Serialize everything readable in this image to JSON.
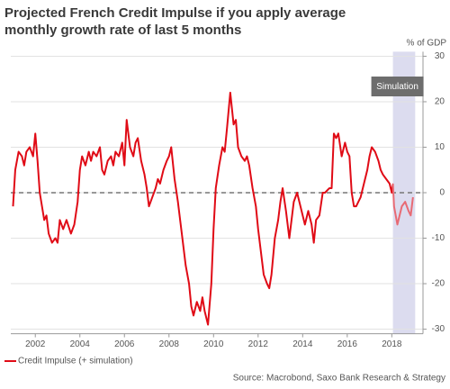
{
  "chart_data": {
    "type": "line",
    "title_lines": [
      "Projected French Credit Impulse if you apply average",
      "monthly growth rate of last 5 months"
    ],
    "y_unit_label": "% of GDP",
    "source": "Source: Macrobond, Saxo Bank Research & Strategy",
    "xlim": [
      2000.9,
      2019.4
    ],
    "xticks": [
      2002,
      2004,
      2006,
      2008,
      2010,
      2012,
      2014,
      2016,
      2018
    ],
    "ylim": [
      -31,
      31
    ],
    "yticks": [
      -30,
      -20,
      -10,
      0,
      10,
      20,
      30
    ],
    "grid": true,
    "zero_line": true,
    "simulation": {
      "label": "Simulation",
      "range": [
        2018.05,
        2019.05
      ],
      "color": "#e86a74",
      "band_color": "#dcdcef"
    },
    "series": [
      {
        "name": "Credit Impulse (+ simulation)",
        "color": "#e00b16",
        "x": [
          2001.0,
          2001.1,
          2001.25,
          2001.4,
          2001.5,
          2001.6,
          2001.75,
          2001.9,
          2002.0,
          2002.1,
          2002.2,
          2002.4,
          2002.5,
          2002.6,
          2002.75,
          2002.9,
          2003.0,
          2003.1,
          2003.25,
          2003.4,
          2003.6,
          2003.75,
          2003.9,
          2004.0,
          2004.1,
          2004.25,
          2004.4,
          2004.5,
          2004.6,
          2004.75,
          2004.9,
          2005.0,
          2005.1,
          2005.25,
          2005.4,
          2005.5,
          2005.6,
          2005.75,
          2005.9,
          2006.0,
          2006.1,
          2006.25,
          2006.4,
          2006.5,
          2006.6,
          2006.75,
          2006.9,
          2007.0,
          2007.1,
          2007.25,
          2007.4,
          2007.5,
          2007.6,
          2007.75,
          2007.9,
          2008.0,
          2008.1,
          2008.25,
          2008.4,
          2008.5,
          2008.6,
          2008.75,
          2008.9,
          2009.0,
          2009.1,
          2009.25,
          2009.4,
          2009.5,
          2009.6,
          2009.75,
          2009.9,
          2010.0,
          2010.1,
          2010.25,
          2010.4,
          2010.5,
          2010.6,
          2010.75,
          2010.9,
          2011.0,
          2011.1,
          2011.25,
          2011.4,
          2011.5,
          2011.6,
          2011.75,
          2011.9,
          2012.0,
          2012.1,
          2012.25,
          2012.4,
          2012.5,
          2012.6,
          2012.75,
          2012.9,
          2013.0,
          2013.1,
          2013.25,
          2013.4,
          2013.5,
          2013.6,
          2013.75,
          2013.9,
          2014.0,
          2014.1,
          2014.25,
          2014.4,
          2014.5,
          2014.6,
          2014.75,
          2014.9,
          2015.0,
          2015.2,
          2015.3,
          2015.4,
          2015.5,
          2015.6,
          2015.75,
          2015.9,
          2016.0,
          2016.1,
          2016.2,
          2016.3,
          2016.4,
          2016.5,
          2016.6,
          2016.75,
          2016.9,
          2017.0,
          2017.1,
          2017.25,
          2017.4,
          2017.5,
          2017.6,
          2017.75,
          2017.9,
          2018.0,
          2018.05,
          2018.1,
          2018.25,
          2018.35,
          2018.45,
          2018.6,
          2018.75,
          2018.85,
          2018.95
        ],
        "values": [
          -3,
          5,
          9,
          8,
          6,
          9,
          10,
          8,
          13,
          7,
          0,
          -6,
          -5,
          -9,
          -11,
          -10,
          -11,
          -6,
          -8,
          -6,
          -9,
          -7,
          -2,
          5,
          8,
          6,
          9,
          7,
          9,
          8,
          10,
          5,
          4,
          7,
          8,
          6,
          9,
          8,
          11,
          6,
          16,
          10,
          8,
          11,
          12,
          7,
          4,
          1,
          -3,
          -1,
          1,
          3,
          2,
          5,
          7,
          8,
          10,
          3,
          -2,
          -6,
          -10,
          -16,
          -20,
          -25,
          -27,
          -24,
          -26,
          -23,
          -26,
          -29,
          -20,
          -8,
          1,
          6,
          10,
          9,
          14,
          22,
          15,
          16,
          10,
          8,
          7,
          8,
          6,
          1,
          -3,
          -8,
          -12,
          -18,
          -20,
          -21,
          -18,
          -10,
          -6,
          -2,
          1,
          -4,
          -10,
          -6,
          -2,
          0,
          -3,
          -5,
          -7,
          -4,
          -7,
          -11,
          -6,
          -5,
          0,
          0,
          1,
          1,
          13,
          12,
          13,
          8,
          11,
          9,
          8,
          0,
          -3,
          -3,
          -2,
          -1,
          2,
          5,
          8,
          10,
          9,
          7,
          5,
          4,
          3,
          2,
          0,
          2,
          -3,
          -7,
          -5,
          -3,
          -2,
          -4,
          -5,
          -1
        ]
      }
    ]
  }
}
